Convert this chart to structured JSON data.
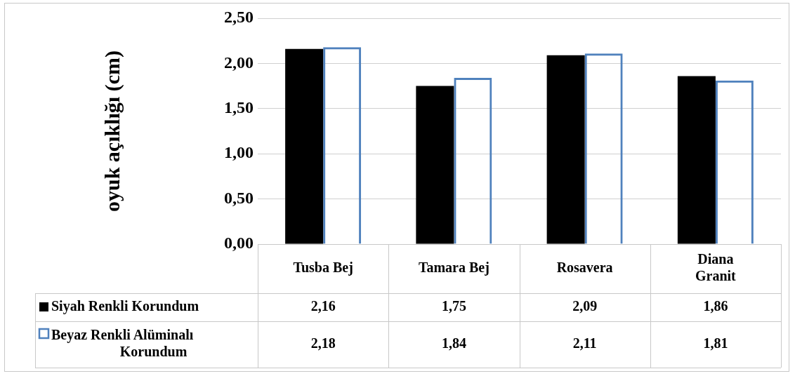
{
  "chart_data": {
    "type": "bar",
    "ylabel": "oyuk açıklığı (cm)",
    "categories": [
      "Tusba Bej",
      "Tamara Bej",
      "Rosavera",
      "Diana Granit"
    ],
    "series": [
      {
        "name": "Siyah Renkli Korundum",
        "color": "#000000",
        "values": [
          2.16,
          1.75,
          2.09,
          1.86
        ],
        "value_labels": [
          "2,16",
          "1,75",
          "2,09",
          "1,86"
        ]
      },
      {
        "name": "Beyaz Renkli Alüminalı Korundum",
        "color": "#4f81bd",
        "values": [
          2.18,
          1.84,
          2.11,
          1.81
        ],
        "value_labels": [
          "2,18",
          "1,84",
          "2,11",
          "1,81"
        ]
      }
    ],
    "ylim": [
      0,
      2.5
    ],
    "yticks": [
      {
        "value": 0,
        "label": "0,00"
      },
      {
        "value": 0.5,
        "label": "0,50"
      },
      {
        "value": 1,
        "label": "1,00"
      },
      {
        "value": 1.5,
        "label": "1,50"
      },
      {
        "value": 2,
        "label": "2,00"
      },
      {
        "value": 2.5,
        "label": "2,50"
      }
    ],
    "grid": "y",
    "legend": "bottom left"
  }
}
